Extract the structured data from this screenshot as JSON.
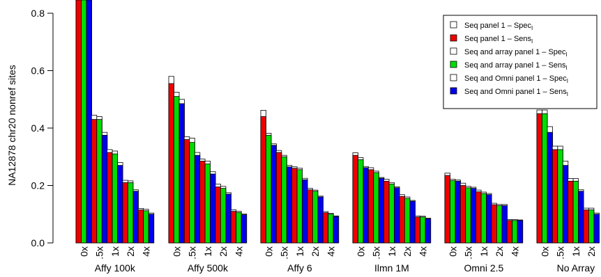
{
  "chart_data": {
    "type": "bar",
    "ylabel": "NA12878 chr20 nonref sites",
    "ylim": [
      0,
      0.85
    ],
    "y_ticks": [
      "0.0",
      "0.2",
      "0.4",
      "0.6",
      "0.8"
    ],
    "y_tick_values": [
      0,
      0.2,
      0.4,
      0.6,
      0.8
    ],
    "groups": [
      "Affy 100k",
      "Affy 500k",
      "Affy 6",
      "Ilmn 1M",
      "Omni 2.5",
      "No Array"
    ],
    "subgroups": [
      "0x",
      ".5x",
      "1x",
      "2x",
      "4x"
    ],
    "legend_position": "top-right",
    "series": [
      {
        "name": "Seq panel 1 – Spec",
        "name_sub": "I",
        "role": "spec",
        "pair": 0,
        "color": "#ffffff"
      },
      {
        "name": "Seq panel 1 – Sens",
        "name_sub": "I",
        "role": "sens",
        "pair": 0,
        "color": "#ee0000"
      },
      {
        "name": "Seq and array panel 1 – Spec",
        "name_sub": "I",
        "role": "spec",
        "pair": 1,
        "color": "#ffffff"
      },
      {
        "name": "Seq and array panel 1 – Sens",
        "name_sub": "I",
        "role": "sens",
        "pair": 1,
        "color": "#00dd00"
      },
      {
        "name": "Seq and Omni panel 1 – Spec",
        "name_sub": "I",
        "role": "spec",
        "pair": 2,
        "color": "#ffffff"
      },
      {
        "name": "Seq and Omni panel 1 – Sens",
        "name_sub": "I",
        "role": "sens",
        "pair": 2,
        "color": "#0000ee"
      }
    ],
    "sens": [
      [
        [
          0.86,
          0.86,
          0.86
        ],
        [
          0.43,
          0.43,
          0.375
        ],
        [
          0.315,
          0.31,
          0.27
        ],
        [
          0.21,
          0.21,
          0.18
        ],
        [
          0.115,
          0.112,
          0.1
        ]
      ],
      [
        [
          0.555,
          0.51,
          0.485
        ],
        [
          0.36,
          0.35,
          0.305
        ],
        [
          0.285,
          0.275,
          0.24
        ],
        [
          0.195,
          0.19,
          0.17
        ],
        [
          0.11,
          0.106,
          0.098
        ]
      ],
      [
        [
          0.44,
          0.375,
          0.34
        ],
        [
          0.315,
          0.3,
          0.265
        ],
        [
          0.26,
          0.255,
          0.22
        ],
        [
          0.185,
          0.18,
          0.16
        ],
        [
          0.105,
          0.1,
          0.092
        ]
      ],
      [
        [
          0.305,
          0.29,
          0.262
        ],
        [
          0.255,
          0.245,
          0.225
        ],
        [
          0.215,
          0.205,
          0.192
        ],
        [
          0.162,
          0.155,
          0.145
        ],
        [
          0.09,
          0.09,
          0.084
        ]
      ],
      [
        [
          0.235,
          0.217,
          0.215
        ],
        [
          0.2,
          0.192,
          0.19
        ],
        [
          0.178,
          0.172,
          0.168
        ],
        [
          0.133,
          0.13,
          0.13
        ],
        [
          0.078,
          0.078,
          0.078
        ]
      ],
      [
        [
          0.45,
          0.45,
          0.385
        ],
        [
          0.325,
          0.325,
          0.27
        ],
        [
          0.215,
          0.215,
          0.18
        ],
        [
          0.115,
          0.115,
          0.1
        ],
        [
          0.0,
          0.0,
          0.0
        ]
      ]
    ],
    "spec": [
      [
        [
          0.86,
          0.86,
          0.86
        ],
        [
          0.445,
          0.44,
          0.385
        ],
        [
          0.325,
          0.32,
          0.28
        ],
        [
          0.218,
          0.216,
          0.185
        ],
        [
          0.12,
          0.117,
          0.104
        ]
      ],
      [
        [
          0.58,
          0.525,
          0.5
        ],
        [
          0.37,
          0.365,
          0.315
        ],
        [
          0.292,
          0.285,
          0.248
        ],
        [
          0.205,
          0.197,
          0.175
        ],
        [
          0.115,
          0.11,
          0.101
        ]
      ],
      [
        [
          0.462,
          0.382,
          0.345
        ],
        [
          0.322,
          0.305,
          0.27
        ],
        [
          0.265,
          0.26,
          0.225
        ],
        [
          0.19,
          0.184,
          0.163
        ],
        [
          0.109,
          0.103,
          0.094
        ]
      ],
      [
        [
          0.314,
          0.297,
          0.266
        ],
        [
          0.262,
          0.25,
          0.228
        ],
        [
          0.222,
          0.21,
          0.195
        ],
        [
          0.168,
          0.16,
          0.148
        ],
        [
          0.094,
          0.093,
          0.086
        ]
      ],
      [
        [
          0.243,
          0.222,
          0.219
        ],
        [
          0.208,
          0.197,
          0.194
        ],
        [
          0.184,
          0.177,
          0.172
        ],
        [
          0.138,
          0.134,
          0.134
        ],
        [
          0.081,
          0.081,
          0.08
        ]
      ],
      [
        [
          0.463,
          0.463,
          0.405
        ],
        [
          0.337,
          0.337,
          0.285
        ],
        [
          0.224,
          0.224,
          0.185
        ],
        [
          0.121,
          0.121,
          0.104
        ],
        [
          0.0,
          0.0,
          0.0
        ]
      ]
    ]
  }
}
